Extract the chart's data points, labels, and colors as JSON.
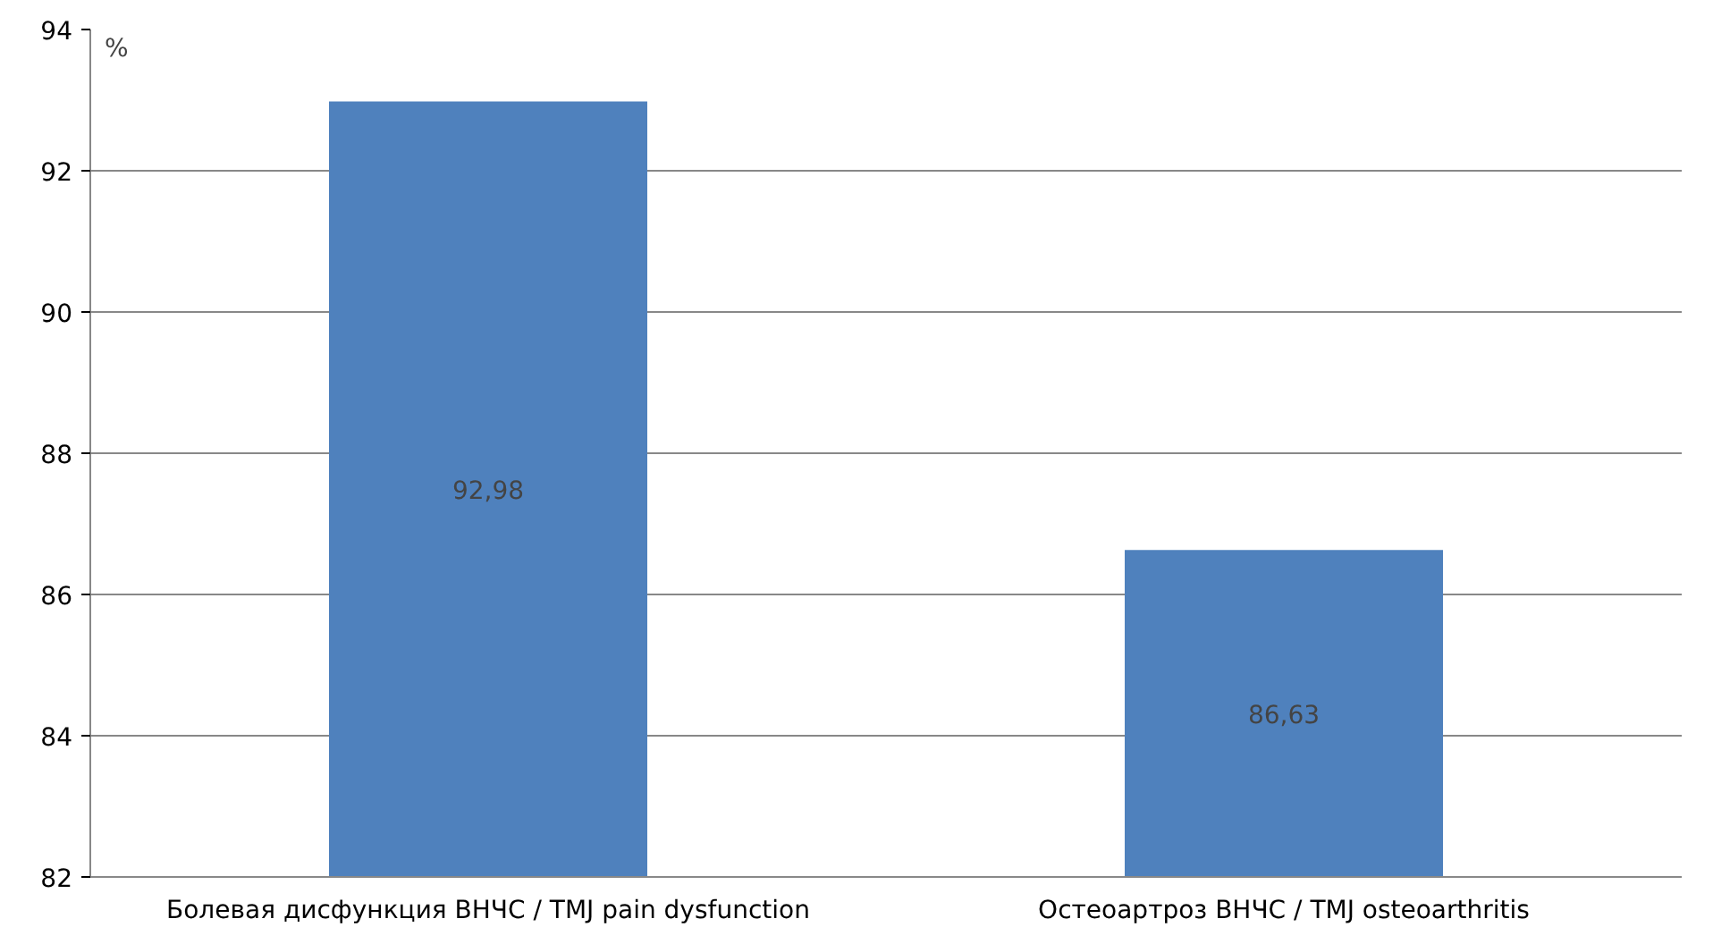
{
  "chart_data": {
    "type": "bar",
    "ylabel": "%",
    "categories": [
      "Болевая дисфункция ВНЧС / TMJ pain dysfunction",
      "Остеоартроз ВНЧС / TMJ osteoarthritis"
    ],
    "values": [
      92.98,
      86.63
    ],
    "value_labels": [
      "92,98",
      "86,63"
    ],
    "color": "#4f81bd",
    "ylim": [
      82,
      94
    ],
    "yticks": [
      82,
      84,
      86,
      88,
      90,
      92,
      94
    ],
    "grid": "y"
  }
}
